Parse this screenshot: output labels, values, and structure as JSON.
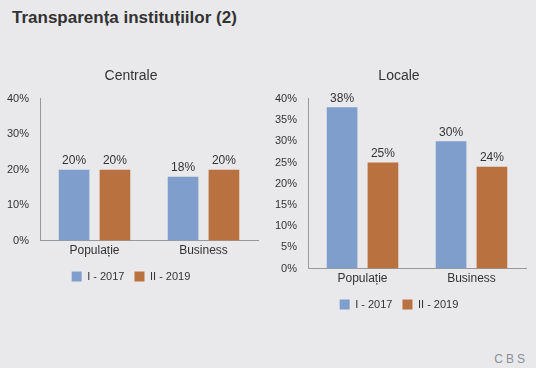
{
  "title": "Transparența instituțiilor (2)",
  "logo": "CBS",
  "chart_data": [
    {
      "type": "bar",
      "title": "Centrale",
      "categories": [
        "Populație",
        "Business"
      ],
      "series": [
        {
          "name": "I - 2017",
          "color": "#809ecb",
          "values": [
            20,
            18
          ],
          "value_labels": [
            "20%",
            "18%"
          ]
        },
        {
          "name": "II - 2019",
          "color": "#b9723f",
          "values": [
            20,
            20
          ],
          "value_labels": [
            "20%",
            "20%"
          ]
        }
      ],
      "ylim": [
        0,
        40
      ],
      "yticks": [
        {
          "value": 0,
          "label": "0%"
        },
        {
          "value": 10,
          "label": "10%"
        },
        {
          "value": 20,
          "label": "20%"
        },
        {
          "value": 30,
          "label": "30%"
        },
        {
          "value": 40,
          "label": "40%"
        }
      ],
      "grid": false,
      "legend": "bottom",
      "data_labels": true
    },
    {
      "type": "bar",
      "title": "Locale",
      "categories": [
        "Populație",
        "Business"
      ],
      "series": [
        {
          "name": "I - 2017",
          "color": "#809ecb",
          "values": [
            38,
            30
          ],
          "value_labels": [
            "38%",
            "30%"
          ]
        },
        {
          "name": "II - 2019",
          "color": "#b9723f",
          "values": [
            25,
            24
          ],
          "value_labels": [
            "25%",
            "24%"
          ]
        }
      ],
      "ylim": [
        0,
        40
      ],
      "yticks": [
        {
          "value": 0,
          "label": "0%"
        },
        {
          "value": 5,
          "label": "5%"
        },
        {
          "value": 10,
          "label": "10%"
        },
        {
          "value": 15,
          "label": "15%"
        },
        {
          "value": 20,
          "label": "20%"
        },
        {
          "value": 25,
          "label": "25%"
        },
        {
          "value": 30,
          "label": "30%"
        },
        {
          "value": 35,
          "label": "35%"
        },
        {
          "value": 40,
          "label": "40%"
        }
      ],
      "grid": false,
      "legend": "bottom",
      "data_labels": true
    }
  ]
}
